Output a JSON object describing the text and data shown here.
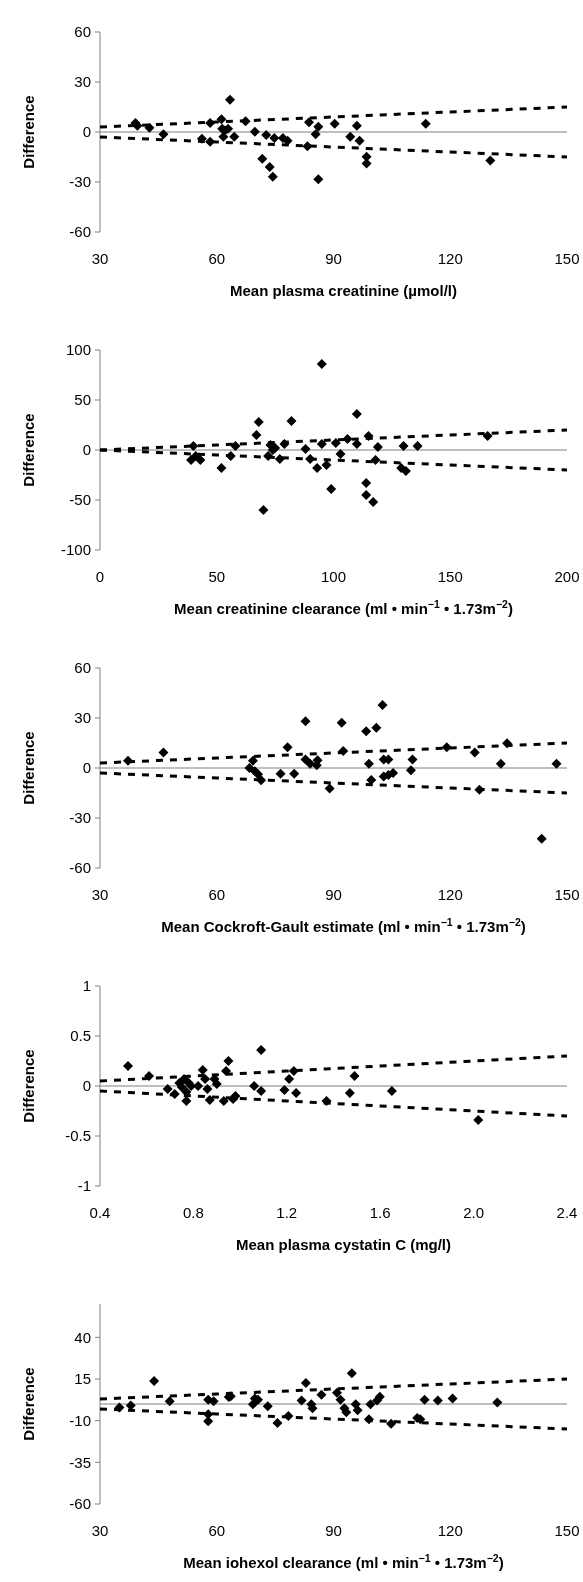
{
  "chart_data": [
    {
      "type": "scatter",
      "xlabel": "Mean plasma creatinine (µmol/l)",
      "ylabel": "Difference",
      "xlim": [
        30,
        150
      ],
      "xticks": [
        30,
        60,
        90,
        120,
        150
      ],
      "ylim": [
        -60,
        60
      ],
      "yticks": [
        -60,
        -30,
        0,
        30,
        60
      ],
      "ref_lines": [
        {
          "axis": "y",
          "value": 0,
          "color": "#808080"
        }
      ],
      "series": [
        {
          "type": "scatter",
          "color": "#000000",
          "marker": "diamond",
          "x": [
            39.1,
            39.6,
            42.7,
            46.3,
            56.2,
            58.3,
            58.3,
            61.2,
            61.4,
            61.7,
            62.1,
            62.9,
            63.4,
            64.5,
            67.4,
            69.8,
            71.7,
            72.7,
            73.6,
            74.4,
            74.8,
            77,
            78.2,
            83.3,
            83.7,
            85.4,
            86.1,
            86.1,
            90.3,
            94.3,
            96,
            96.7,
            98.5,
            98.5,
            113.7,
            130.3
          ],
          "values": [
            5.4,
            3.8,
            2.5,
            -1.4,
            -4,
            5.4,
            -5.9,
            7.7,
            2,
            -2.9,
            0.9,
            2,
            19.4,
            -2.9,
            6.5,
            0.2,
            -16,
            -1.8,
            -21,
            -26.8,
            -3.6,
            -3.6,
            -5.2,
            -8.6,
            5.9,
            -1.4,
            3.2,
            -28.4,
            5,
            -2.9,
            3.8,
            -5.2,
            -14.9,
            -18.9,
            5,
            -17.1
          ]
        },
        {
          "type": "line",
          "color": "#000000",
          "line_style": "dashed",
          "x": [
            30,
            60,
            90,
            120,
            150
          ],
          "values": [
            3,
            6,
            9,
            12,
            15
          ]
        },
        {
          "type": "line",
          "color": "#000000",
          "line_style": "dashed",
          "x": [
            30,
            60,
            90,
            120,
            150
          ],
          "values": [
            -3,
            -6,
            -9,
            -12,
            -15
          ]
        }
      ]
    },
    {
      "type": "scatter",
      "xlabel": "Mean creatinine clearance (ml • min$^{−1}$ • 1.73m$^{−2}$)",
      "ylabel": "Difference",
      "xlim": [
        0,
        200
      ],
      "xticks": [
        0,
        50,
        100,
        150,
        200
      ],
      "ylim": [
        -100,
        100
      ],
      "yticks": [
        -100,
        -50,
        0,
        50,
        100
      ],
      "ref_lines": [
        {
          "axis": "y",
          "value": 0,
          "color": "#808080"
        }
      ],
      "series": [
        {
          "color": "#000000",
          "marker": "diamond",
          "x": [
            40,
            39,
            43,
            41,
            52,
            56,
            58,
            67,
            68,
            70,
            73,
            72,
            74,
            75,
            77,
            79,
            82,
            88,
            90,
            93,
            95,
            95,
            97,
            99,
            101,
            103,
            106,
            110,
            110,
            114,
            114,
            115,
            117,
            119,
            118,
            129,
            130,
            131,
            136,
            166
          ],
          "values": [
            4,
            -10,
            -10,
            -6,
            -18,
            -6,
            4,
            15,
            28,
            -60,
            5,
            -6,
            0,
            2,
            -9,
            6,
            29,
            1,
            -9,
            -18,
            86,
            6,
            -15,
            -39,
            7,
            -4,
            11,
            36,
            6,
            -33,
            -45,
            14,
            -52,
            3,
            -10,
            -18,
            4,
            -21,
            4,
            14
          ]
        },
        {
          "type": "line",
          "color": "#000000",
          "line_style": "dashed",
          "x": [
            0,
            50,
            100,
            150,
            200
          ],
          "values": [
            0,
            5,
            10,
            15,
            20
          ]
        },
        {
          "type": "line",
          "color": "#000000",
          "line_style": "dashed",
          "x": [
            0,
            50,
            100,
            150,
            200
          ],
          "values": [
            0,
            -5,
            -10,
            -15,
            -20
          ]
        }
      ]
    },
    {
      "type": "scatter",
      "xlabel": "Mean Cockroft-Gault estimate (ml • min$^{−1}$ • 1.73m$^{−2}$)",
      "ylabel": "Difference",
      "xlim": [
        30,
        150
      ],
      "xticks": [
        30,
        60,
        90,
        120,
        150
      ],
      "ylim": [
        -60,
        60
      ],
      "yticks": [
        -60,
        -30,
        0,
        30,
        60
      ],
      "ref_lines": [
        {
          "axis": "y",
          "value": 0,
          "color": "#808080"
        }
      ],
      "series": [
        {
          "type": "scatter",
          "color": "#000000",
          "marker": "diamond",
          "x": [
            37.2,
            46.3,
            69.3,
            68.4,
            69.8,
            70.6,
            71.4,
            76.4,
            78.2,
            79.9,
            82.8,
            82.8,
            84,
            85.9,
            85.7,
            89,
            92.1,
            92.5,
            98.4,
            99.1,
            99.7,
            101,
            102.6,
            102.9,
            102.9,
            104.1,
            104.1,
            105.3,
            109.9,
            110.3,
            119.1,
            126.3,
            127.5,
            133,
            134.6,
            143.5,
            147.3
          ],
          "values": [
            4.4,
            9.3,
            4.4,
            0,
            -1.9,
            -3.7,
            -7.4,
            -3.5,
            12.5,
            -3.5,
            28,
            5.1,
            2.5,
            4.6,
            1.6,
            -12.3,
            27.1,
            10.2,
            22,
            2.5,
            -7.2,
            24.1,
            37.8,
            5.1,
            -5.1,
            5.1,
            -4.2,
            -3,
            -1.4,
            5.1,
            12.5,
            9.3,
            -13,
            2.5,
            14.8,
            -42.4,
            2.5
          ]
        },
        {
          "type": "line",
          "color": "#000000",
          "line_style": "dashed",
          "x": [
            30,
            60,
            90,
            120,
            150
          ],
          "values": [
            3,
            6,
            9,
            12,
            15
          ]
        },
        {
          "type": "line",
          "color": "#000000",
          "line_style": "dashed",
          "x": [
            30,
            60,
            90,
            120,
            150
          ],
          "values": [
            -3,
            -6,
            -9,
            -12,
            -15
          ]
        }
      ]
    },
    {
      "type": "scatter",
      "xlabel": "Mean plasma cystatin C (mg/l)",
      "ylabel": "Difference",
      "xlim": [
        0.4,
        2.4
      ],
      "xticks": [
        0.4,
        0.8,
        1.2,
        1.6,
        {
          "value": 2,
          "label": "2.0"
        },
        2.4
      ],
      "ylim": [
        -1,
        1
      ],
      "yticks": [
        -1,
        -0.5,
        0,
        0.5,
        1
      ],
      "ref_lines": [
        {
          "axis": "y",
          "value": 0,
          "color": "#808080"
        }
      ],
      "series": [
        {
          "type": "scatter",
          "color": "#000000",
          "marker": "diamond",
          "x": [
            0.52,
            0.61,
            0.69,
            0.72,
            0.74,
            0.75,
            0.76,
            0.77,
            0.78,
            0.79,
            0.77,
            0.82,
            0.84,
            0.85,
            0.86,
            0.87,
            0.89,
            0.9,
            0.94,
            0.93,
            0.95,
            0.98,
            0.97,
            1.06,
            1.09,
            1.09,
            1.19,
            1.21,
            1.23,
            1.24,
            1.37,
            1.47,
            1.49,
            1.65,
            2.02
          ],
          "values": [
            0.2,
            0.1,
            -0.03,
            -0.08,
            0.03,
            -0.01,
            0.07,
            -0.15,
            0.03,
            0,
            -0.06,
            0,
            0.16,
            0.07,
            -0.03,
            -0.14,
            0.07,
            0.02,
            0.15,
            -0.15,
            0.25,
            -0.1,
            -0.13,
            0,
            0.36,
            -0.05,
            -0.04,
            0.07,
            0.15,
            -0.07,
            -0.15,
            -0.07,
            0.1,
            -0.05,
            -0.34
          ]
        },
        {
          "type": "line",
          "color": "#000000",
          "line_style": "dashed",
          "x": [
            0.4,
            0.8,
            1.2,
            1.6,
            2,
            2.4
          ],
          "values": [
            0.05,
            0.1,
            0.15,
            0.2,
            0.25,
            0.3
          ]
        },
        {
          "type": "line",
          "color": "#000000",
          "line_style": "dashed",
          "x": [
            0.4,
            0.8,
            1.2,
            1.6,
            2,
            2.4
          ],
          "values": [
            -0.05,
            -0.1,
            -0.15,
            -0.2,
            -0.25,
            -0.3
          ]
        }
      ]
    },
    {
      "type": "scatter",
      "xlabel": "Mean iohexol clearance (ml • min$^{−1}$ • 1.73m$^{−2}$)",
      "ylabel": "Difference",
      "xlim": [
        30,
        150
      ],
      "xticks": [
        30,
        60,
        90,
        120,
        150
      ],
      "ylim": [
        -60,
        60
      ],
      "yticks": [
        -60,
        -35,
        -10,
        15,
        40
      ],
      "ref_lines": [
        {
          "axis": "y",
          "value": 0,
          "color": "#808080"
        }
      ],
      "series": [
        {
          "type": "scatter",
          "color": "#000000",
          "marker": "diamond",
          "x": [
            35,
            37.9,
            43.9,
            47.9,
            57.8,
            57.8,
            57.8,
            59.2,
            63.1,
            63.6,
            69.3,
            69.8,
            70.6,
            73.1,
            75.6,
            78.4,
            81.8,
            82.9,
            84.3,
            84.6,
            86.9,
            90.9,
            91.8,
            92.8,
            93.3,
            94.7,
            95.7,
            96.2,
            99.1,
            99.5,
            101.2,
            101.9,
            104.8,
            111.5,
            112.3,
            113.4,
            116.8,
            120.6,
            132.1
          ],
          "values": [
            -2.1,
            -0.9,
            13.8,
            1.6,
            2.6,
            -6.1,
            -10.3,
            1.6,
            4.2,
            4.7,
            -0.2,
            3.3,
            2.6,
            -1.4,
            -11.4,
            -7.2,
            2.1,
            12.6,
            -0.2,
            -2.6,
            5.6,
            6.8,
            2.6,
            -2.6,
            -4.9,
            18.5,
            -0.2,
            -3.7,
            -9.1,
            -0.2,
            2.1,
            4.4,
            -11.9,
            -8.4,
            -9.1,
            2.6,
            2.1,
            3.3,
            0.9
          ]
        },
        {
          "type": "line",
          "color": "#000000",
          "line_style": "dashed",
          "x": [
            30,
            60,
            90,
            120,
            150
          ],
          "values": [
            3,
            6,
            9,
            12,
            15
          ]
        },
        {
          "type": "line",
          "color": "#000000",
          "line_style": "dashed",
          "x": [
            30,
            60,
            90,
            120,
            150
          ],
          "values": [
            -3,
            -6,
            -9,
            -12,
            -15
          ]
        }
      ]
    }
  ]
}
